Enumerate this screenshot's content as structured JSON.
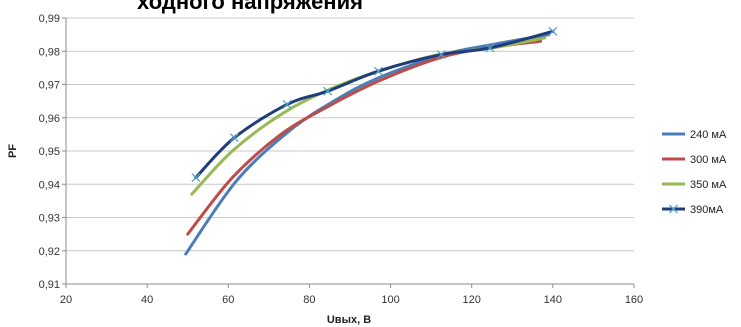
{
  "chart_data": {
    "type": "line",
    "title": "ходного напряжения",
    "xlabel": "Uвых, В",
    "ylabel": "PF",
    "xlim": [
      20,
      160
    ],
    "ylim": [
      0.91,
      0.99
    ],
    "x_ticks": [
      "20",
      "40",
      "60",
      "80",
      "100",
      "120",
      "140",
      "160"
    ],
    "y_ticks": [
      "0,91",
      "0,92",
      "0,93",
      "0,94",
      "0,95",
      "0,96",
      "0,97",
      "0,98",
      "0,99"
    ],
    "grid": "horizontal",
    "legend_position": "right",
    "series": [
      {
        "name": "240 мА",
        "color": "#4a7ebb",
        "marker": "none",
        "points": [
          [
            49.5,
            0.919
          ],
          [
            62,
            0.941
          ],
          [
            75,
            0.956
          ],
          [
            86,
            0.965
          ],
          [
            97,
            0.972
          ],
          [
            113,
            0.979
          ],
          [
            125,
            0.982
          ],
          [
            139,
            0.985
          ]
        ]
      },
      {
        "name": "300 мА",
        "color": "#be4b48",
        "marker": "none",
        "points": [
          [
            50,
            0.925
          ],
          [
            61,
            0.942
          ],
          [
            73,
            0.955
          ],
          [
            84,
            0.963
          ],
          [
            97,
            0.971
          ],
          [
            112,
            0.978
          ],
          [
            124,
            0.981
          ],
          [
            137,
            0.983
          ]
        ]
      },
      {
        "name": "350 мА",
        "color": "#98b954",
        "marker": "none",
        "points": [
          [
            51,
            0.937
          ],
          [
            61,
            0.95
          ],
          [
            73,
            0.961
          ],
          [
            84,
            0.968
          ],
          [
            97,
            0.974
          ],
          [
            112,
            0.979
          ],
          [
            125,
            0.981
          ],
          [
            138,
            0.984
          ]
        ]
      },
      {
        "name": "390мА",
        "color": "#1f3d7a",
        "marker": "x",
        "points": [
          [
            52,
            0.942
          ],
          [
            61.5,
            0.954
          ],
          [
            74.5,
            0.964
          ],
          [
            84.5,
            0.968
          ],
          [
            97,
            0.974
          ],
          [
            112.5,
            0.979
          ],
          [
            124.5,
            0.981
          ],
          [
            140,
            0.986
          ]
        ]
      }
    ]
  }
}
